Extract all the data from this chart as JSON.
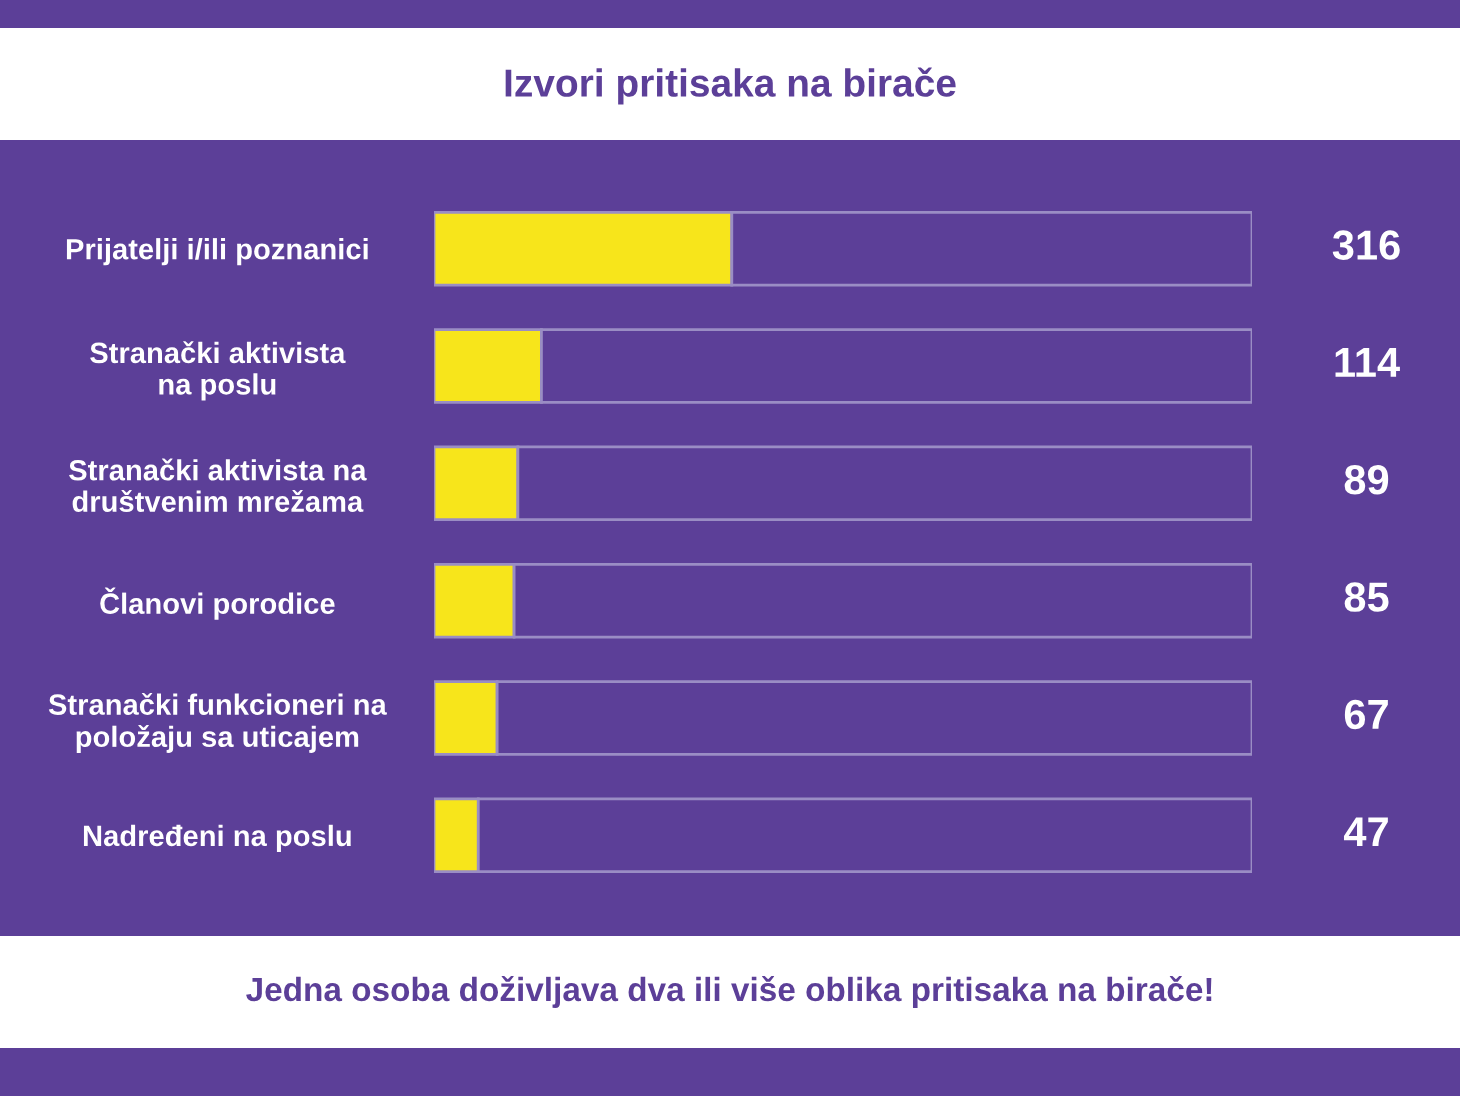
{
  "chart_data": {
    "type": "bar",
    "orientation": "horizontal",
    "stacked": true,
    "title": "Izvori pritisaka na birače",
    "categories": [
      "Prijatelji i/ili poznanici",
      "Stranački aktivista\nna poslu",
      "Stranački aktivista na\ndruštvenim mrežama",
      "Članovi porodice",
      "Stranački funkcioneri na\npoložaju sa uticajem",
      "Nadređeni na poslu"
    ],
    "series": [
      {
        "color": "#f7e51b",
        "values": [
          316,
          114,
          89,
          85,
          67,
          47
        ],
        "value_labels": [
          "316",
          "114",
          "89",
          "85",
          "67",
          "47"
        ]
      },
      {
        "color": "#5c3f98",
        "values": [
          552,
          754,
          779,
          783,
          801,
          821
        ]
      }
    ],
    "xlim": [
      0,
      868
    ],
    "annotations": [
      "Jedna osoba doživljava dva ili više oblika pritisaka na birače!"
    ]
  }
}
